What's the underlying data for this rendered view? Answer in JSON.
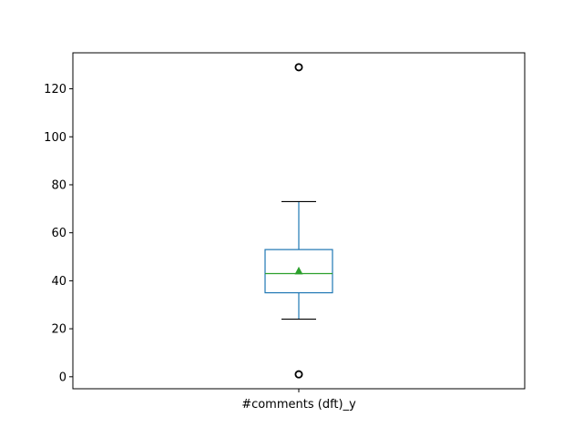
{
  "chart_data": {
    "type": "box",
    "categories": [
      "#comments (dft)_y"
    ],
    "yticks": [
      0,
      20,
      40,
      60,
      80,
      100,
      120
    ],
    "ylim": [
      -5,
      135
    ],
    "boxes": [
      {
        "label": "#comments (dft)_y",
        "whisker_low": 24,
        "q1": 35,
        "median": 43,
        "mean": 44,
        "q3": 53,
        "whisker_high": 73,
        "outliers": [
          1,
          129
        ]
      }
    ],
    "grid": false,
    "colors": {
      "box": "#1f77b4",
      "median": "#2ca02c",
      "mean_marker": "#2ca02c",
      "whisker_cap": "#000000",
      "outlier": "#000000"
    }
  }
}
